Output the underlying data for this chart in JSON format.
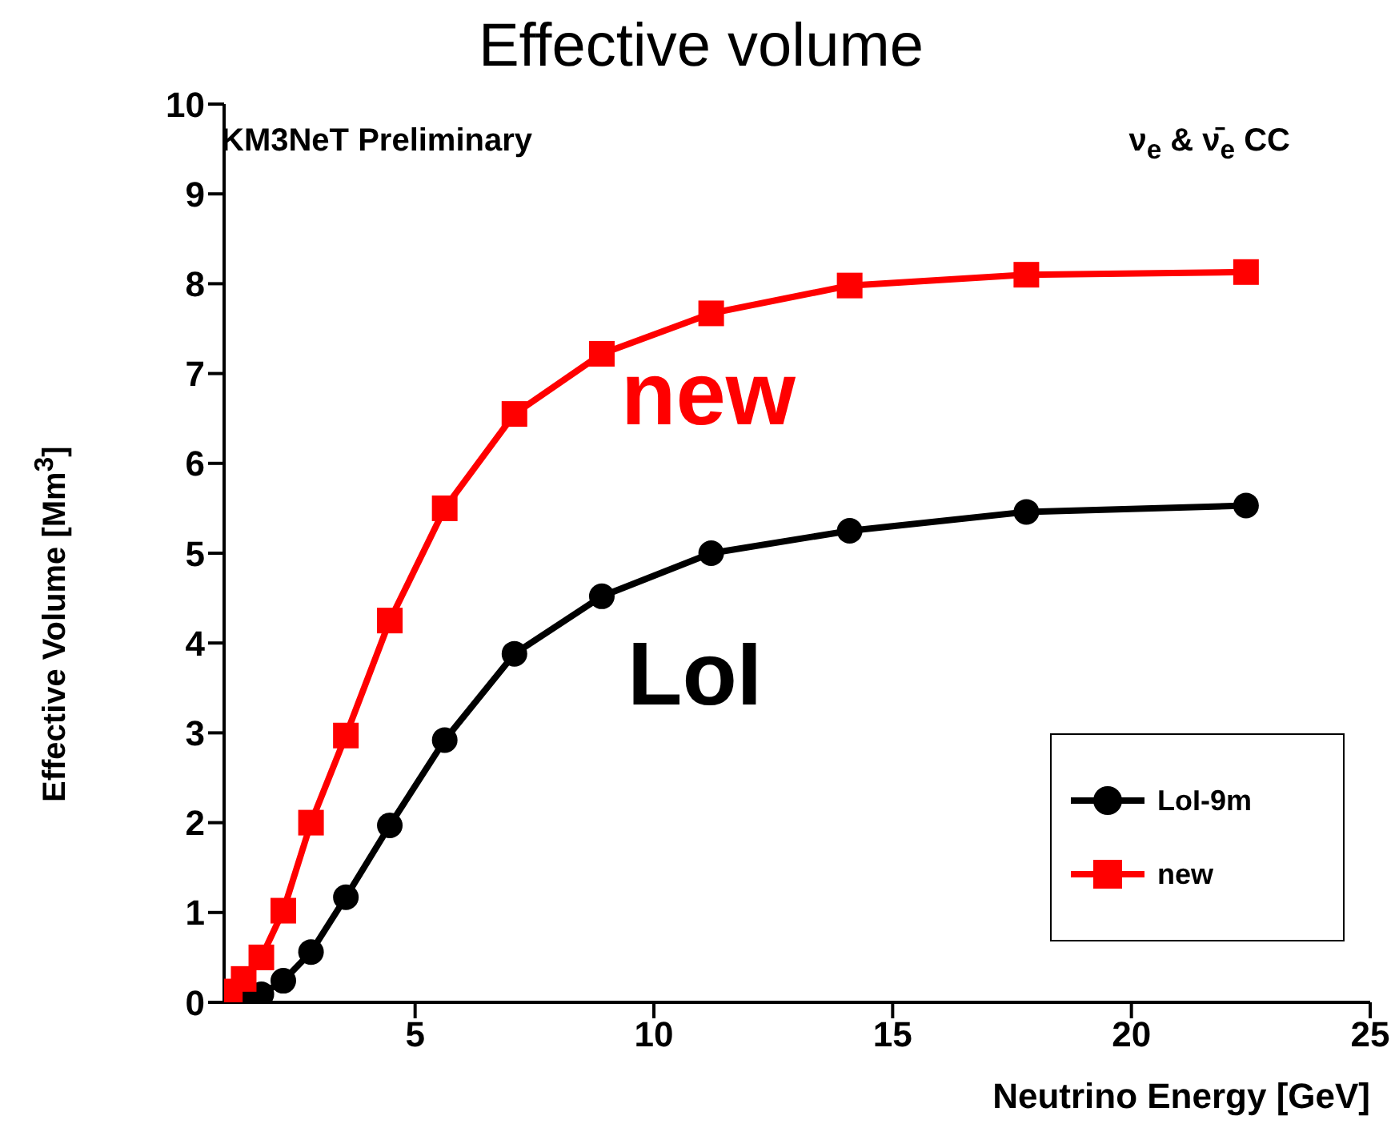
{
  "chart_data": {
    "type": "line",
    "title": "Effective volume",
    "xlabel": "Neutrino Energy [GeV]",
    "ylabel": "Effective Volume [Mm$^{3}$]",
    "annotations": [
      "KM3NeT Preliminary",
      "ν$_{e}$ & ν̄$_{e}$ CC",
      "new",
      "LoI"
    ],
    "x": [
      1.12,
      1.41,
      1.78,
      2.24,
      2.82,
      3.55,
      4.47,
      5.62,
      7.08,
      8.91,
      11.2,
      14.1,
      17.8,
      22.4
    ],
    "series": [
      {
        "name": "LoI-9m",
        "color": "#000000",
        "marker": "circle",
        "values": [
          0.0,
          0.02,
          0.09,
          0.24,
          0.56,
          1.17,
          1.97,
          2.92,
          3.88,
          4.52,
          5.0,
          5.25,
          5.46,
          5.53
        ]
      },
      {
        "name": "new",
        "color": "#ff0000",
        "marker": "square",
        "values": [
          0.12,
          0.26,
          0.5,
          1.02,
          2.0,
          2.97,
          4.25,
          5.5,
          6.55,
          7.22,
          7.67,
          7.98,
          8.1,
          8.13
        ]
      }
    ],
    "xlim": [
      1,
      25
    ],
    "xticks": [
      5,
      10,
      15,
      20,
      25
    ],
    "ylim": [
      0,
      10
    ],
    "yticks": [
      0,
      1,
      2,
      3,
      4,
      5,
      6,
      7,
      8,
      9,
      10
    ],
    "grid": false,
    "legend": "bottom right",
    "line_style": "solid"
  }
}
